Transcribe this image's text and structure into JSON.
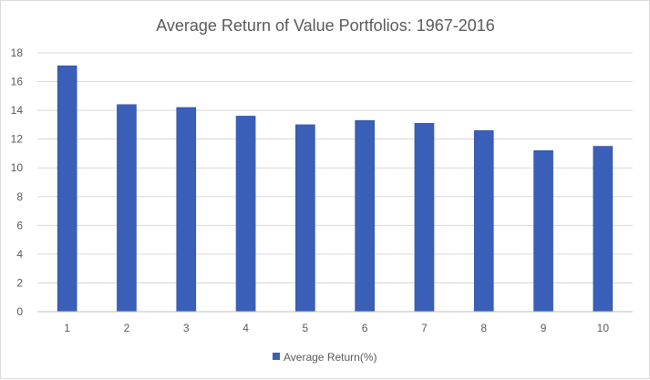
{
  "chart_data": {
    "type": "bar",
    "title": "Average Return of Value Portfolios: 1967-2016",
    "xlabel": "",
    "ylabel": "",
    "categories": [
      "1",
      "2",
      "3",
      "4",
      "5",
      "6",
      "7",
      "8",
      "9",
      "10"
    ],
    "series": [
      {
        "name": "Average Return(%)",
        "values": [
          17.1,
          14.4,
          14.2,
          13.6,
          13.0,
          13.3,
          13.1,
          12.6,
          11.2,
          11.5
        ],
        "color": "#3a5fb9"
      }
    ],
    "ylim": [
      0,
      18
    ],
    "yticks": [
      "0",
      "2",
      "4",
      "6",
      "8",
      "10",
      "12",
      "14",
      "16",
      "18"
    ],
    "grid": true,
    "legend_position": "bottom"
  }
}
